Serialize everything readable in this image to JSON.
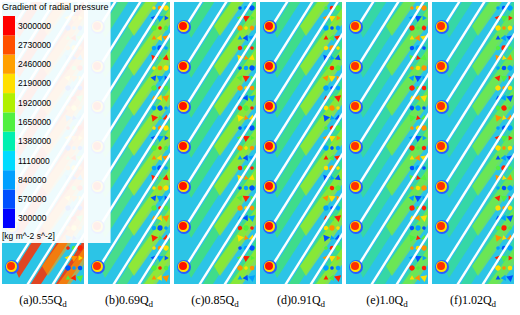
{
  "chart_data": {
    "type": "contour",
    "title": "Gradient of radial pressure",
    "colorbar": {
      "label": "[kg m^-2 s^-2]",
      "range": [
        300000,
        3000000
      ],
      "ticks": [
        300000,
        570000,
        840000,
        1110000,
        1380000,
        1650000,
        1920000,
        2190000,
        2460000,
        2730000,
        3000000
      ],
      "colors": [
        "#0000ff",
        "#0050ff",
        "#00a0ff",
        "#00dcff",
        "#00f0b0",
        "#50f040",
        "#b0f000",
        "#ffe000",
        "#ffa000",
        "#ff5000",
        "#ff0000"
      ]
    },
    "panels": [
      {
        "label": "(a)0.55Q",
        "subscript": "d"
      },
      {
        "label": "(b)0.69Q",
        "subscript": "d"
      },
      {
        "label": "(c)0.85Q",
        "subscript": "d"
      },
      {
        "label": "(d)0.91Q",
        "subscript": "d"
      },
      {
        "label": "(e)1.0Q",
        "subscript": "d"
      },
      {
        "label": "(f)1.02Q",
        "subscript": "d"
      }
    ]
  }
}
